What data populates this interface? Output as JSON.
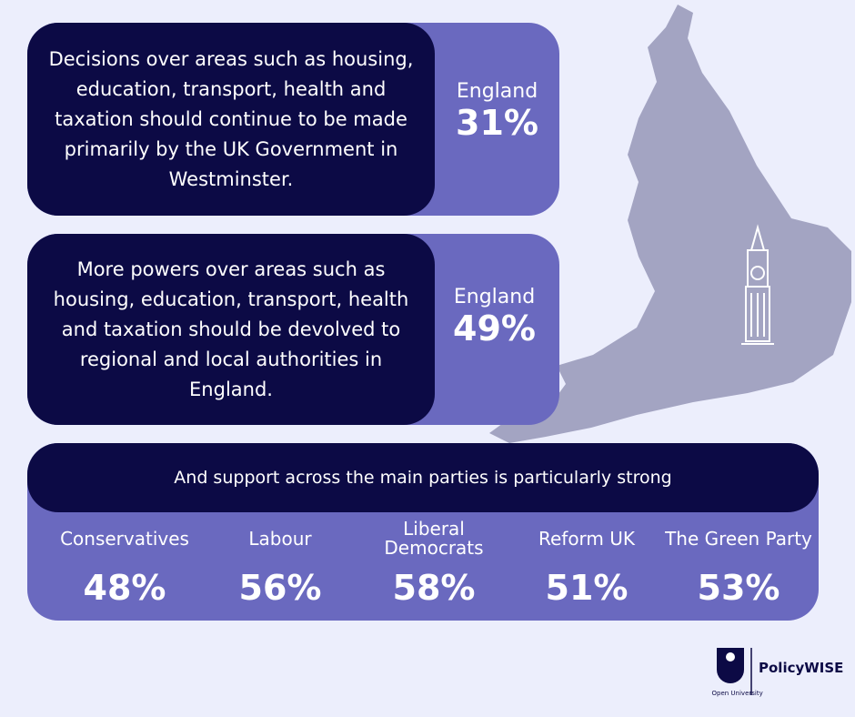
{
  "panels": [
    {
      "statement": "Decisions over areas such as housing, education, transport, health and taxation should continue to be made primarily by the UK Government in Westminster.",
      "region": "England",
      "figure": "31%"
    },
    {
      "statement": "More powers over areas such as housing, education, transport, health and taxation should be devolved to regional and local authorities in England.",
      "region": "England",
      "figure": "49%"
    }
  ],
  "parties": {
    "heading": "And support across the main parties is particularly strong",
    "items": [
      {
        "name": "Conservatives",
        "figure": "48%"
      },
      {
        "name": "Labour",
        "figure": "56%"
      },
      {
        "name": "Liberal Democrats",
        "figure": "58%"
      },
      {
        "name": "Reform UK",
        "figure": "51%"
      },
      {
        "name": "The Green Party",
        "figure": "53%"
      }
    ]
  },
  "logo": {
    "university": "The Open University",
    "brand": "PolicyWISE"
  }
}
